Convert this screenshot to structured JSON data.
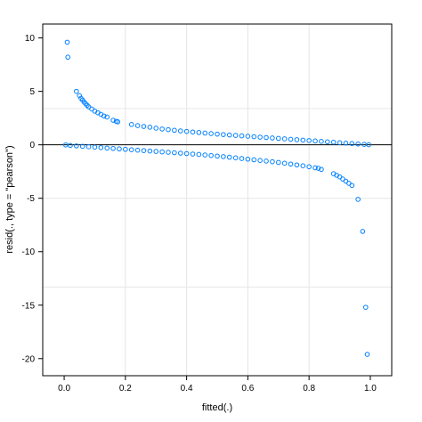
{
  "chart_data": {
    "type": "scatter",
    "title": "",
    "xlabel": "fitted(.)",
    "ylabel": "resid(., type = \"pearson\")",
    "xlim": [
      -0.07,
      1.07
    ],
    "ylim": [
      -21.6,
      11.3
    ],
    "xticks": [
      "0.0",
      "0.2",
      "0.4",
      "0.6",
      "0.8",
      "1.0"
    ],
    "xtick_values": [
      0,
      0.2,
      0.4,
      0.6,
      0.8,
      1.0
    ],
    "yticks": [
      "10",
      "5",
      "0",
      "-5",
      "-10",
      "-15",
      "-20"
    ],
    "ytick_values": [
      10,
      5,
      0,
      -5,
      -10,
      -15,
      -20
    ],
    "grid": true,
    "reference_line_y": 0,
    "point_color": "#0080ff",
    "series": [
      {
        "points": [
          [
            0.01,
            9.6
          ],
          [
            0.012,
            8.2
          ],
          [
            0.04,
            5.0
          ],
          [
            0.05,
            4.6
          ],
          [
            0.055,
            4.35
          ],
          [
            0.06,
            4.2
          ],
          [
            0.065,
            4.0
          ],
          [
            0.07,
            3.85
          ],
          [
            0.075,
            3.7
          ],
          [
            0.08,
            3.55
          ],
          [
            0.09,
            3.35
          ],
          [
            0.1,
            3.15
          ],
          [
            0.11,
            3.0
          ],
          [
            0.12,
            2.85
          ],
          [
            0.13,
            2.7
          ],
          [
            0.14,
            2.6
          ],
          [
            0.16,
            2.3
          ],
          [
            0.17,
            2.2
          ],
          [
            0.175,
            2.15
          ],
          [
            0.22,
            1.9
          ],
          [
            0.24,
            1.8
          ],
          [
            0.26,
            1.72
          ],
          [
            0.28,
            1.65
          ],
          [
            0.3,
            1.56
          ],
          [
            0.32,
            1.48
          ],
          [
            0.34,
            1.42
          ],
          [
            0.36,
            1.36
          ],
          [
            0.38,
            1.3
          ],
          [
            0.4,
            1.25
          ],
          [
            0.42,
            1.2
          ],
          [
            0.44,
            1.15
          ],
          [
            0.46,
            1.1
          ],
          [
            0.48,
            1.05
          ],
          [
            0.5,
            1.0
          ],
          [
            0.52,
            0.96
          ],
          [
            0.54,
            0.92
          ],
          [
            0.56,
            0.88
          ],
          [
            0.58,
            0.84
          ],
          [
            0.6,
            0.8
          ],
          [
            0.62,
            0.76
          ],
          [
            0.64,
            0.72
          ],
          [
            0.66,
            0.68
          ],
          [
            0.68,
            0.64
          ],
          [
            0.7,
            0.6
          ],
          [
            0.72,
            0.56
          ],
          [
            0.74,
            0.52
          ],
          [
            0.76,
            0.48
          ],
          [
            0.78,
            0.44
          ],
          [
            0.8,
            0.4
          ],
          [
            0.82,
            0.36
          ],
          [
            0.84,
            0.32
          ],
          [
            0.86,
            0.28
          ],
          [
            0.88,
            0.24
          ],
          [
            0.9,
            0.2
          ],
          [
            0.92,
            0.16
          ],
          [
            0.94,
            0.12
          ],
          [
            0.96,
            0.08
          ],
          [
            0.98,
            0.04
          ],
          [
            0.995,
            0.01
          ],
          [
            0.005,
            -0.01
          ],
          [
            0.02,
            -0.06
          ],
          [
            0.04,
            -0.1
          ],
          [
            0.06,
            -0.14
          ],
          [
            0.08,
            -0.18
          ],
          [
            0.1,
            -0.22
          ],
          [
            0.12,
            -0.26
          ],
          [
            0.14,
            -0.3
          ],
          [
            0.16,
            -0.34
          ],
          [
            0.18,
            -0.38
          ],
          [
            0.2,
            -0.42
          ],
          [
            0.22,
            -0.46
          ],
          [
            0.24,
            -0.5
          ],
          [
            0.26,
            -0.54
          ],
          [
            0.28,
            -0.58
          ],
          [
            0.3,
            -0.62
          ],
          [
            0.32,
            -0.66
          ],
          [
            0.34,
            -0.7
          ],
          [
            0.36,
            -0.74
          ],
          [
            0.38,
            -0.78
          ],
          [
            0.4,
            -0.82
          ],
          [
            0.42,
            -0.86
          ],
          [
            0.44,
            -0.9
          ],
          [
            0.46,
            -0.95
          ],
          [
            0.48,
            -1.0
          ],
          [
            0.5,
            -1.05
          ],
          [
            0.52,
            -1.1
          ],
          [
            0.54,
            -1.16
          ],
          [
            0.56,
            -1.22
          ],
          [
            0.58,
            -1.28
          ],
          [
            0.6,
            -1.34
          ],
          [
            0.62,
            -1.4
          ],
          [
            0.64,
            -1.46
          ],
          [
            0.66,
            -1.52
          ],
          [
            0.68,
            -1.58
          ],
          [
            0.7,
            -1.65
          ],
          [
            0.72,
            -1.72
          ],
          [
            0.74,
            -1.8
          ],
          [
            0.76,
            -1.88
          ],
          [
            0.78,
            -1.96
          ],
          [
            0.8,
            -2.05
          ],
          [
            0.82,
            -2.15
          ],
          [
            0.83,
            -2.2
          ],
          [
            0.84,
            -2.3
          ],
          [
            0.88,
            -2.7
          ],
          [
            0.89,
            -2.85
          ],
          [
            0.9,
            -3.0
          ],
          [
            0.91,
            -3.2
          ],
          [
            0.92,
            -3.4
          ],
          [
            0.93,
            -3.6
          ],
          [
            0.94,
            -3.8
          ],
          [
            0.96,
            -5.1
          ],
          [
            0.975,
            -8.1
          ],
          [
            0.985,
            -15.2
          ],
          [
            0.99,
            -19.6
          ]
        ]
      }
    ]
  }
}
